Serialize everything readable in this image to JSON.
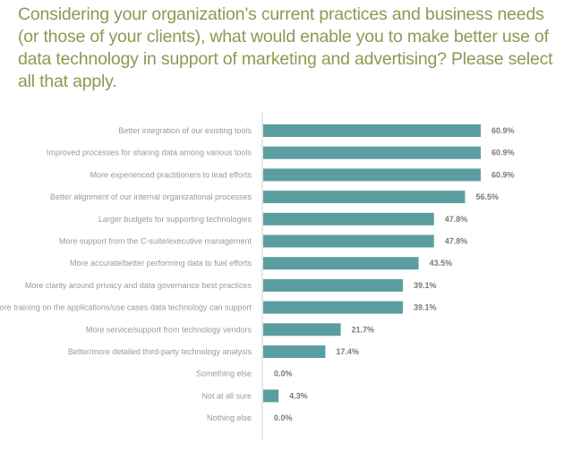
{
  "chart_data": {
    "type": "bar",
    "orientation": "horizontal",
    "title": "Considering your organization’s current practices and business needs (or those of your clients), what would enable you to make better use of data technology in support of marketing and advertising? Please select all that apply.",
    "categories": [
      "Better integration of our existing tools",
      "Improved processes for sharing data among various tools",
      "More experienced practitioners to lead efforts",
      "Better alignment of our internal organizational processes",
      "Larger budgets for supporting technologies",
      "More support from the C-suite/executive management",
      "More accurate/better performing data to fuel efforts",
      "More clarity around privacy and data governance best practices",
      "More training on the applications/use cases data technology can support",
      "More service/support from technology vendors",
      "Better/more detailed third-party technology analysis",
      "Something else",
      "Not at all sure",
      "Nothing else"
    ],
    "values": [
      60.9,
      60.9,
      60.9,
      56.5,
      47.8,
      47.8,
      43.5,
      39.1,
      39.1,
      21.7,
      17.4,
      0.0,
      4.3,
      0.0
    ],
    "data_labels": [
      "60.9%",
      "60.9%",
      "60.9%",
      "56.5%",
      "47.8%",
      "47.8%",
      "43.5%",
      "39.1%",
      "39.1%",
      "21.7%",
      "17.4%",
      "0.0%",
      "4.3%",
      "0.0%"
    ],
    "xlim": [
      0,
      70
    ],
    "grid": false,
    "bar_color": "#5b9ea0",
    "title_color": "#8c9a52"
  }
}
